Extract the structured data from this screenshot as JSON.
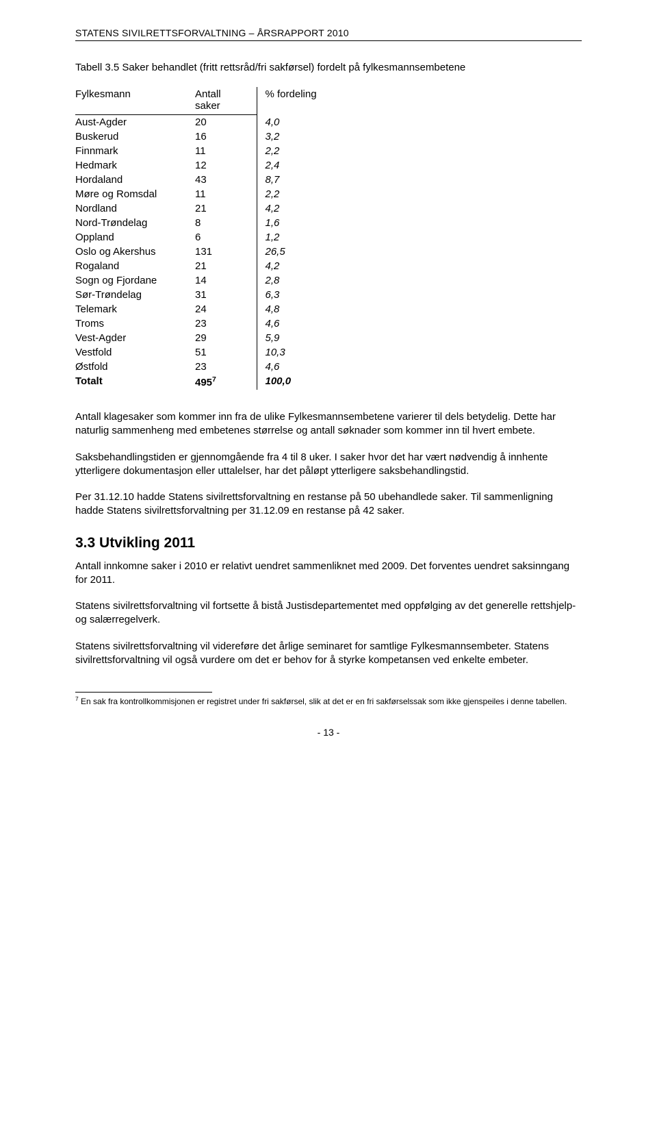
{
  "header": "STATENS SIVILRETTSFORVALTNING – ÅRSRAPPORT 2010",
  "table": {
    "caption": "Tabell 3.5 Saker behandlet (fritt rettsråd/fri sakførsel) fordelt på fylkesmannsembetene",
    "columns": {
      "county": "Fylkesmann",
      "cases": "Antall\nsaker",
      "pct": "% fordeling"
    },
    "rows": [
      {
        "county": "Aust-Agder",
        "cases": "20",
        "pct": "4,0"
      },
      {
        "county": "Buskerud",
        "cases": "16",
        "pct": "3,2"
      },
      {
        "county": "Finnmark",
        "cases": "11",
        "pct": "2,2"
      },
      {
        "county": "Hedmark",
        "cases": "12",
        "pct": "2,4"
      },
      {
        "county": "Hordaland",
        "cases": "43",
        "pct": "8,7"
      },
      {
        "county": "Møre og Romsdal",
        "cases": "11",
        "pct": "2,2"
      },
      {
        "county": "Nordland",
        "cases": "21",
        "pct": "4,2"
      },
      {
        "county": "Nord-Trøndelag",
        "cases": "8",
        "pct": "1,6"
      },
      {
        "county": "Oppland",
        "cases": "6",
        "pct": "1,2"
      },
      {
        "county": "Oslo og Akershus",
        "cases": "131",
        "pct": "26,5"
      },
      {
        "county": "Rogaland",
        "cases": "21",
        "pct": "4,2"
      },
      {
        "county": "Sogn og Fjordane",
        "cases": "14",
        "pct": "2,8"
      },
      {
        "county": "Sør-Trøndelag",
        "cases": "31",
        "pct": "6,3"
      },
      {
        "county": "Telemark",
        "cases": "24",
        "pct": "4,8"
      },
      {
        "county": "Troms",
        "cases": "23",
        "pct": "4,6"
      },
      {
        "county": "Vest-Agder",
        "cases": "29",
        "pct": "5,9"
      },
      {
        "county": "Vestfold",
        "cases": "51",
        "pct": "10,3"
      },
      {
        "county": "Østfold",
        "cases": "23",
        "pct": "4,6"
      }
    ],
    "total": {
      "label": "Totalt",
      "cases": "495",
      "sup": "7",
      "pct": "100,0"
    }
  },
  "paras": {
    "p1": "Antall klagesaker som kommer inn fra de ulike Fylkesmannsembetene varierer til dels betydelig. Dette har naturlig sammenheng med embetenes størrelse og antall søknader som kommer inn til hvert embete.",
    "p2": "Saksbehandlingstiden er gjennomgående fra 4 til 8 uker. I saker hvor det har vært nødvendig å innhente ytterligere dokumentasjon eller uttalelser, har det påløpt ytterligere saksbehandlingstid.",
    "p3": "Per 31.12.10 hadde Statens sivilrettsforvaltning en restanse på 50 ubehandlede saker. Til sammenligning hadde Statens sivilrettsforvaltning per 31.12.09 en restanse på 42 saker."
  },
  "section": {
    "title": "3.3 Utvikling 2011",
    "p1": "Antall innkomne saker i 2010 er relativt uendret sammenliknet med 2009. Det forventes uendret saksinngang for 2011.",
    "p2": "Statens sivilrettsforvaltning vil fortsette å bistå Justisdepartementet med oppfølging av det generelle rettshjelp- og salærregelverk.",
    "p3": "Statens sivilrettsforvaltning vil videreføre det årlige seminaret for samtlige Fylkesmannsembeter. Statens sivilrettsforvaltning vil også vurdere om det er behov for å styrke kompetansen ved enkelte embeter."
  },
  "footnote": {
    "marker": "7",
    "text": " En sak fra kontrollkommisjonen er registret under fri sakførsel, slik at det er en fri sakførselssak som ikke gjenspeiles i denne tabellen."
  },
  "page_number": "- 13 -"
}
